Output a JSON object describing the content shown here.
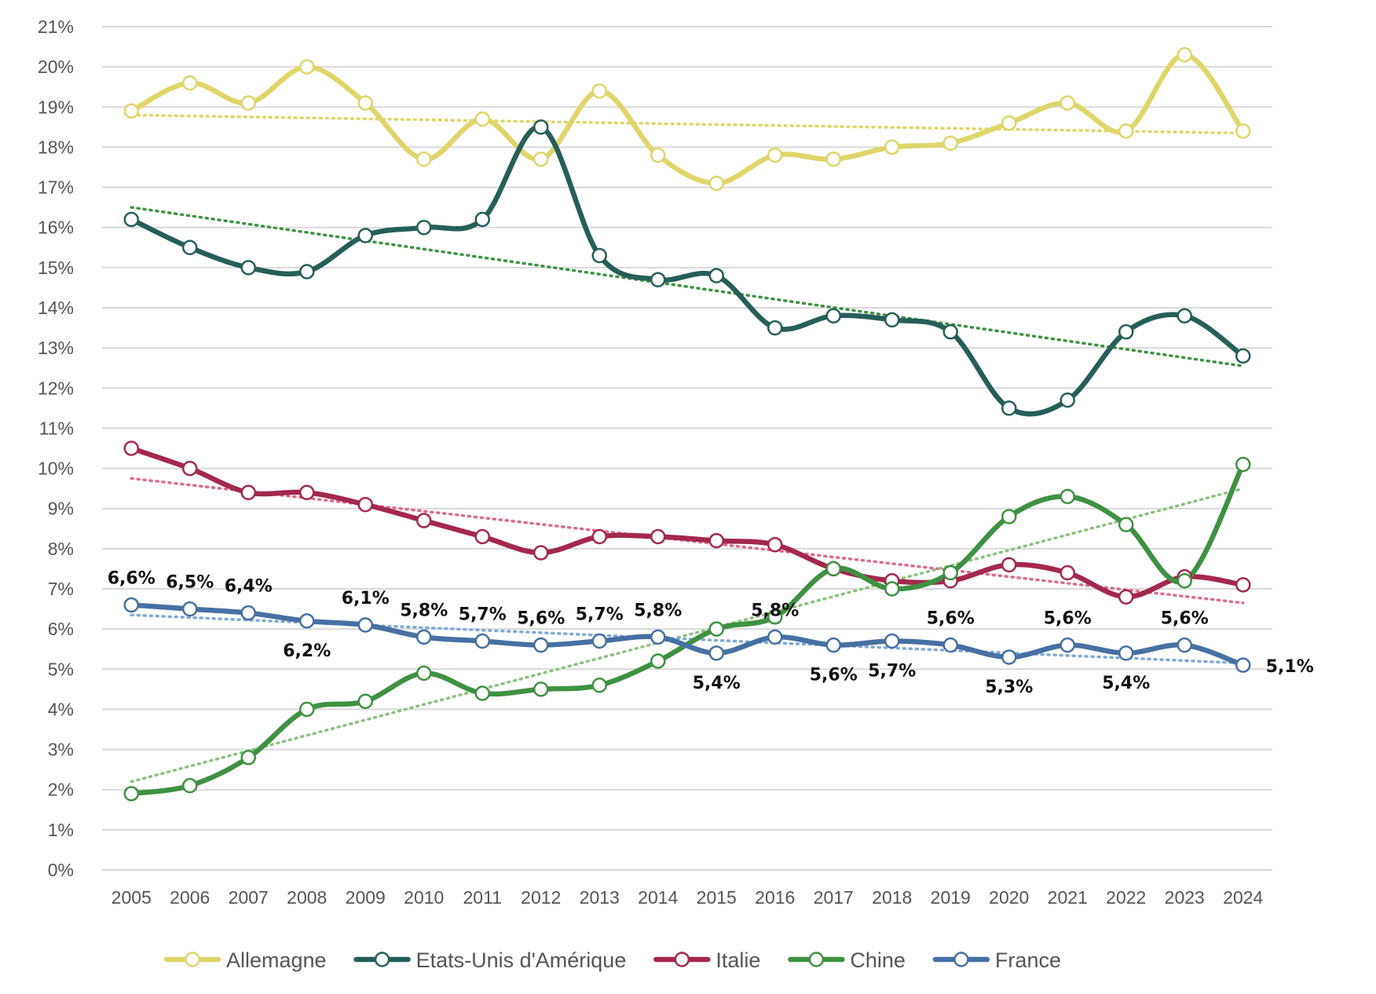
{
  "chart_data": {
    "type": "line",
    "title": "",
    "xlabel": "",
    "ylabel": "",
    "ylim": [
      0,
      21
    ],
    "grid": true,
    "legend_position": "bottom",
    "x": [
      "2005",
      "2006",
      "2007",
      "2008",
      "2009",
      "2010",
      "2011",
      "2012",
      "2013",
      "2014",
      "2015",
      "2016",
      "2017",
      "2018",
      "2019",
      "2020",
      "2021",
      "2022",
      "2023",
      "2024"
    ],
    "y_ticks": [
      "0%",
      "1%",
      "2%",
      "3%",
      "4%",
      "5%",
      "6%",
      "7%",
      "8%",
      "9%",
      "10%",
      "11%",
      "12%",
      "13%",
      "14%",
      "15%",
      "16%",
      "17%",
      "18%",
      "19%",
      "20%",
      "21%"
    ],
    "series": [
      {
        "name": "Allemagne",
        "color": "#DFD66A",
        "trend_color": "#DFD66A",
        "values": [
          18.9,
          19.6,
          19.1,
          20.0,
          19.1,
          17.7,
          18.7,
          17.7,
          19.4,
          17.8,
          17.1,
          17.8,
          17.7,
          18.0,
          18.1,
          18.6,
          19.1,
          18.4,
          20.3,
          18.4
        ],
        "trend": [
          18.8,
          18.35
        ]
      },
      {
        "name": "Etats-Unis d'Amérique",
        "color": "#265E58",
        "trend_color": "#3F9142",
        "values": [
          16.2,
          15.5,
          15.0,
          14.9,
          15.8,
          16.0,
          16.2,
          18.5,
          15.3,
          14.7,
          14.8,
          13.5,
          13.8,
          13.7,
          13.4,
          11.5,
          11.7,
          13.4,
          13.8,
          12.8
        ],
        "trend": [
          16.5,
          12.55
        ]
      },
      {
        "name": "Italie",
        "color": "#A3284E",
        "trend_color": "#DE6A8C",
        "values": [
          10.5,
          10.0,
          9.4,
          9.4,
          9.1,
          8.7,
          8.3,
          7.9,
          8.3,
          8.3,
          8.2,
          8.1,
          7.5,
          7.2,
          7.2,
          7.6,
          7.4,
          6.8,
          7.3,
          7.1
        ],
        "trend": [
          9.75,
          6.65
        ]
      },
      {
        "name": "Chine",
        "color": "#3F9142",
        "trend_color": "#8DC181",
        "values": [
          1.9,
          2.1,
          2.8,
          4.0,
          4.2,
          4.9,
          4.4,
          4.5,
          4.6,
          5.2,
          6.0,
          6.3,
          7.5,
          7.0,
          7.4,
          8.8,
          9.3,
          8.6,
          7.2,
          10.1
        ],
        "trend": [
          2.2,
          9.5
        ]
      },
      {
        "name": "France",
        "color": "#4770A3",
        "trend_color": "#7FA9D6",
        "values": [
          6.6,
          6.5,
          6.4,
          6.2,
          6.1,
          5.8,
          5.7,
          5.6,
          5.7,
          5.8,
          5.4,
          5.8,
          5.6,
          5.7,
          5.6,
          5.3,
          5.6,
          5.4,
          5.6,
          5.1
        ],
        "trend": [
          6.35,
          5.15
        ]
      }
    ],
    "data_labels": {
      "series": "France",
      "labels": [
        "6,6%",
        "6,5%",
        "6,4%",
        "6,2%",
        "6,1%",
        "5,8%",
        "5,7%",
        "5,6%",
        "5,7%",
        "5,8%",
        "5,4%",
        "5,8%",
        "5,6%",
        "5,7%",
        "5,6%",
        "5,3%",
        "5,6%",
        "5,4%",
        "5,6%",
        "5,1%"
      ],
      "placement": [
        "above",
        "above",
        "above",
        "below",
        "above",
        "above",
        "above",
        "above",
        "above",
        "above",
        "below",
        "above",
        "below",
        "below",
        "above",
        "below",
        "above",
        "below",
        "above",
        "right"
      ]
    }
  }
}
